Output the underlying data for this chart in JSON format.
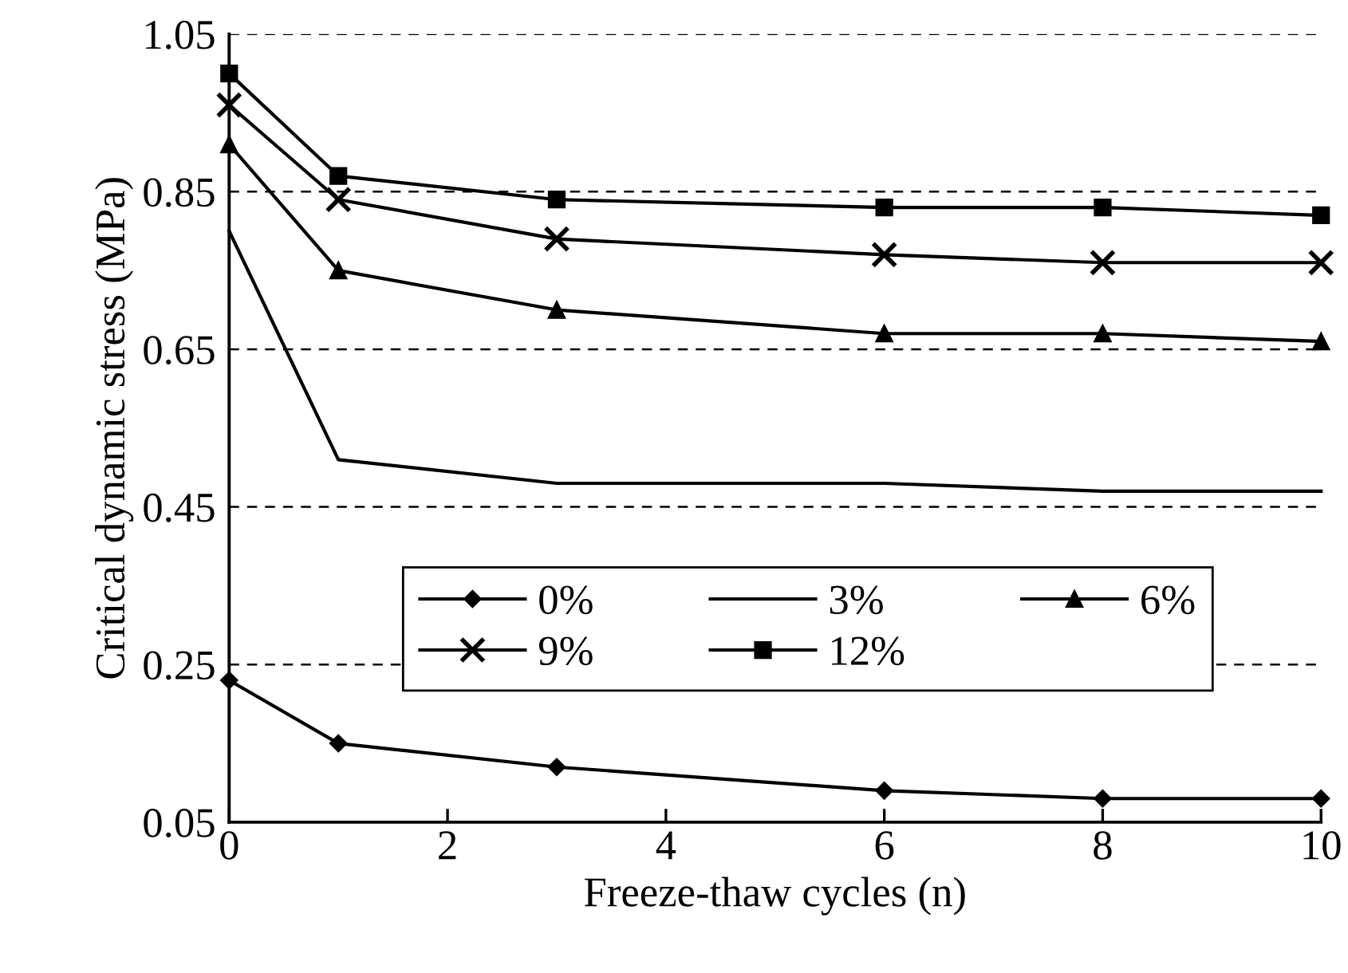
{
  "chart_data": {
    "type": "line",
    "xlabel": "Freeze-thaw cycles (n)",
    "ylabel": "Critical dynamic stress (MPa)",
    "x": [
      0,
      1,
      3,
      6,
      8,
      10
    ],
    "series": [
      {
        "name": "0%",
        "color": "#000000",
        "marker": "diamond",
        "values": [
          0.23,
          0.15,
          0.12,
          0.09,
          0.08,
          0.08
        ]
      },
      {
        "name": "3%",
        "color": "#000000",
        "marker": "none",
        "values": [
          0.8,
          0.51,
          0.48,
          0.48,
          0.47,
          0.47
        ]
      },
      {
        "name": "6%",
        "color": "#000000",
        "marker": "triangle",
        "values": [
          0.91,
          0.75,
          0.7,
          0.67,
          0.67,
          0.66
        ]
      },
      {
        "name": "9%",
        "color": "#000000",
        "marker": "cross",
        "values": [
          0.96,
          0.84,
          0.79,
          0.77,
          0.76,
          0.76
        ]
      },
      {
        "name": "12%",
        "color": "#000000",
        "marker": "square",
        "values": [
          1.0,
          0.87,
          0.84,
          0.83,
          0.83,
          0.82
        ]
      }
    ],
    "xlim": [
      0,
      10
    ],
    "xticks": [
      0,
      2,
      4,
      6,
      8,
      10
    ],
    "ylim": [
      0.05,
      1.05
    ],
    "yticks": [
      {
        "value": 0.05,
        "label": "0.05"
      },
      {
        "value": 0.25,
        "label": "0.25"
      },
      {
        "value": 0.45,
        "label": "0.45"
      },
      {
        "value": 0.65,
        "label": "0.65"
      },
      {
        "value": 0.85,
        "label": "0.85"
      },
      {
        "value": 1.05,
        "label": "1.05"
      }
    ],
    "grid": "y",
    "legend": "center",
    "line_style": "solid"
  }
}
